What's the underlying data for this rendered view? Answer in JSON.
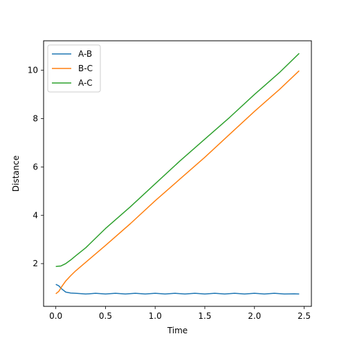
{
  "chart_data": {
    "type": "line",
    "title": "",
    "xlabel": "Time",
    "ylabel": "Distance",
    "xlim": [
      -0.123,
      2.573
    ],
    "ylim": [
      0.23,
      11.22
    ],
    "xticks": [
      0.0,
      0.5,
      1.0,
      1.5,
      2.0,
      2.5
    ],
    "xtick_labels": [
      "0.0",
      "0.5",
      "1.0",
      "1.5",
      "2.0",
      "2.5"
    ],
    "yticks": [
      2,
      4,
      6,
      8,
      10
    ],
    "ytick_labels": [
      "2",
      "4",
      "6",
      "8",
      "10"
    ],
    "grid": false,
    "legend_position": "top-left",
    "series": [
      {
        "name": "A-B",
        "color": "#1f77b4",
        "points": [
          [
            0.0,
            1.14
          ],
          [
            0.03,
            1.08
          ],
          [
            0.06,
            0.95
          ],
          [
            0.1,
            0.82
          ],
          [
            0.15,
            0.78
          ],
          [
            0.2,
            0.77
          ],
          [
            0.3,
            0.74
          ],
          [
            0.4,
            0.77
          ],
          [
            0.5,
            0.74
          ],
          [
            0.6,
            0.77
          ],
          [
            0.7,
            0.74
          ],
          [
            0.8,
            0.77
          ],
          [
            0.9,
            0.74
          ],
          [
            1.0,
            0.77
          ],
          [
            1.1,
            0.74
          ],
          [
            1.2,
            0.77
          ],
          [
            1.3,
            0.74
          ],
          [
            1.4,
            0.77
          ],
          [
            1.5,
            0.74
          ],
          [
            1.6,
            0.77
          ],
          [
            1.7,
            0.74
          ],
          [
            1.8,
            0.77
          ],
          [
            1.9,
            0.74
          ],
          [
            2.0,
            0.77
          ],
          [
            2.1,
            0.74
          ],
          [
            2.2,
            0.77
          ],
          [
            2.3,
            0.74
          ],
          [
            2.4,
            0.75
          ],
          [
            2.45,
            0.74
          ]
        ]
      },
      {
        "name": "B-C",
        "color": "#ff7f0e",
        "points": [
          [
            0.0,
            0.75
          ],
          [
            0.03,
            0.85
          ],
          [
            0.06,
            1.05
          ],
          [
            0.1,
            1.28
          ],
          [
            0.15,
            1.5
          ],
          [
            0.2,
            1.7
          ],
          [
            0.3,
            2.05
          ],
          [
            0.5,
            2.75
          ],
          [
            0.75,
            3.65
          ],
          [
            1.0,
            4.6
          ],
          [
            1.25,
            5.5
          ],
          [
            1.5,
            6.4
          ],
          [
            1.75,
            7.35
          ],
          [
            2.0,
            8.3
          ],
          [
            2.25,
            9.2
          ],
          [
            2.45,
            9.98
          ]
        ]
      },
      {
        "name": "A-C",
        "color": "#2ca02c",
        "points": [
          [
            0.0,
            1.88
          ],
          [
            0.05,
            1.9
          ],
          [
            0.1,
            2.0
          ],
          [
            0.15,
            2.15
          ],
          [
            0.2,
            2.32
          ],
          [
            0.3,
            2.65
          ],
          [
            0.5,
            3.45
          ],
          [
            0.75,
            4.35
          ],
          [
            1.0,
            5.3
          ],
          [
            1.25,
            6.25
          ],
          [
            1.5,
            7.15
          ],
          [
            1.75,
            8.05
          ],
          [
            2.0,
            9.0
          ],
          [
            2.25,
            9.9
          ],
          [
            2.45,
            10.7
          ]
        ]
      }
    ]
  }
}
